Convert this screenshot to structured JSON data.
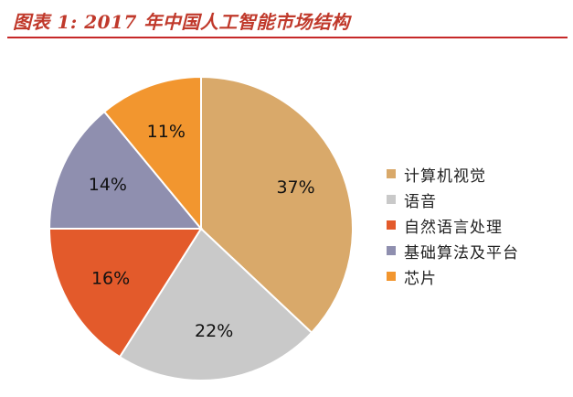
{
  "title": "图表 1: 2017 年中国人工智能市场结构",
  "chart_data": {
    "type": "pie",
    "title": "图表 1: 2017 年中国人工智能市场结构",
    "legend_position": "right",
    "slices": [
      {
        "name": "计算机视觉",
        "value": 37,
        "label": "37%",
        "color": "#D9A96A"
      },
      {
        "name": "语音",
        "value": 22,
        "label": "22%",
        "color": "#C9C9C9"
      },
      {
        "name": "自然语言处理",
        "value": 16,
        "label": "16%",
        "color": "#E35A2B"
      },
      {
        "name": "基础算法及平台",
        "value": 14,
        "label": "14%",
        "color": "#8F8FAF"
      },
      {
        "name": "芯片",
        "value": 11,
        "label": "11%",
        "color": "#F2962F"
      }
    ]
  }
}
